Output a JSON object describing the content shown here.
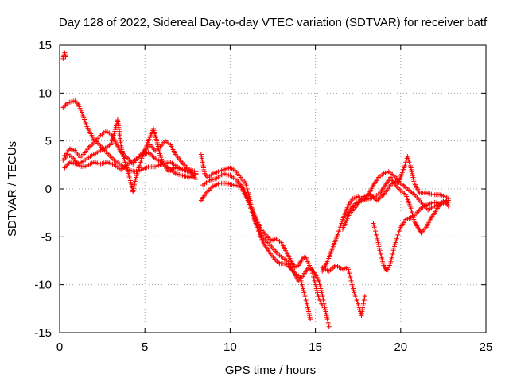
{
  "chart_data": {
    "type": "scatter",
    "title": "Day 128 of 2022, Sidereal Day-to-day VTEC variation (SDTVAR) for receiver batf",
    "xlabel": "GPS time / hours",
    "ylabel": "SDTVAR / TECUs",
    "xlim": [
      0,
      25
    ],
    "ylim": [
      -15,
      15
    ],
    "xticks": [
      0,
      5,
      10,
      15,
      20,
      25
    ],
    "yticks": [
      -15,
      -10,
      -5,
      0,
      5,
      10,
      15
    ],
    "grid": true,
    "marker": "plus",
    "color": "#ff0000",
    "traces": [
      {
        "points": [
          [
            0.2,
            13.6
          ],
          [
            0.25,
            14.0
          ],
          [
            0.3,
            14.2
          ],
          [
            0.35,
            13.8
          ]
        ]
      },
      {
        "points": [
          [
            0.2,
            8.5
          ],
          [
            0.5,
            9.0
          ],
          [
            0.9,
            9.2
          ],
          [
            1.1,
            8.8
          ],
          [
            1.3,
            8.0
          ],
          [
            1.6,
            6.5
          ],
          [
            2.0,
            5.2
          ],
          [
            2.4,
            4.5
          ],
          [
            2.8,
            3.7
          ],
          [
            3.2,
            3.0
          ],
          [
            3.6,
            2.5
          ],
          [
            4.0,
            2.0
          ],
          [
            4.4,
            1.8
          ],
          [
            4.8,
            2.0
          ],
          [
            5.2,
            2.3
          ],
          [
            5.6,
            2.3
          ],
          [
            6.0,
            2.6
          ],
          [
            6.5,
            2.8
          ],
          [
            7.0,
            2.2
          ],
          [
            7.5,
            1.8
          ],
          [
            8.0,
            1.6
          ]
        ]
      },
      {
        "points": [
          [
            0.3,
            2.2
          ],
          [
            0.6,
            2.8
          ],
          [
            1.0,
            2.6
          ],
          [
            1.4,
            2.9
          ],
          [
            1.8,
            3.4
          ],
          [
            2.2,
            3.8
          ],
          [
            2.6,
            4.2
          ],
          [
            3.0,
            4.6
          ],
          [
            3.2,
            5.8
          ],
          [
            3.4,
            7.2
          ],
          [
            3.5,
            6.0
          ],
          [
            3.6,
            4.5
          ],
          [
            3.8,
            3.0
          ],
          [
            4.0,
            1.8
          ],
          [
            4.2,
            0.5
          ],
          [
            4.3,
            -0.3
          ],
          [
            4.4,
            0.6
          ],
          [
            4.6,
            2.0
          ],
          [
            4.9,
            3.6
          ],
          [
            5.2,
            5.0
          ],
          [
            5.5,
            6.3
          ],
          [
            5.7,
            5.0
          ],
          [
            5.9,
            3.5
          ],
          [
            6.1,
            2.5
          ],
          [
            6.4,
            1.8
          ],
          [
            6.8,
            2.2
          ],
          [
            7.2,
            2.0
          ],
          [
            7.6,
            2.0
          ],
          [
            8.0,
            1.8
          ]
        ]
      },
      {
        "points": [
          [
            0.3,
            3.5
          ],
          [
            0.6,
            4.2
          ],
          [
            0.9,
            4.0
          ],
          [
            1.2,
            3.3
          ],
          [
            1.4,
            3.6
          ],
          [
            1.7,
            4.3
          ],
          [
            2.0,
            4.8
          ],
          [
            2.4,
            5.6
          ],
          [
            2.7,
            6.0
          ],
          [
            3.0,
            5.8
          ],
          [
            3.3,
            4.8
          ],
          [
            3.6,
            3.8
          ],
          [
            4.0,
            3.2
          ],
          [
            4.3,
            2.6
          ],
          [
            4.6,
            3.3
          ],
          [
            5.0,
            4.0
          ],
          [
            5.3,
            4.6
          ],
          [
            5.6,
            4.0
          ],
          [
            5.9,
            4.4
          ],
          [
            6.2,
            5.0
          ],
          [
            6.5,
            4.6
          ],
          [
            6.8,
            3.6
          ],
          [
            7.2,
            2.7
          ],
          [
            7.6,
            2.0
          ],
          [
            8.0,
            1.0
          ]
        ]
      },
      {
        "points": [
          [
            0.2,
            3.0
          ],
          [
            0.5,
            3.6
          ],
          [
            0.8,
            3.2
          ],
          [
            1.2,
            2.3
          ],
          [
            1.6,
            2.4
          ],
          [
            2.0,
            2.8
          ],
          [
            2.4,
            2.6
          ],
          [
            2.8,
            2.8
          ],
          [
            3.2,
            2.5
          ],
          [
            3.6,
            2.0
          ],
          [
            4.0,
            2.6
          ],
          [
            4.4,
            3.0
          ],
          [
            4.8,
            3.5
          ],
          [
            5.2,
            3.8
          ],
          [
            5.6,
            3.2
          ],
          [
            6.0,
            2.7
          ],
          [
            6.4,
            2.2
          ],
          [
            6.8,
            1.6
          ],
          [
            7.2,
            1.4
          ],
          [
            7.6,
            1.2
          ],
          [
            8.0,
            1.5
          ]
        ]
      },
      {
        "points": [
          [
            8.3,
            3.6
          ],
          [
            8.4,
            2.6
          ],
          [
            8.5,
            1.6
          ],
          [
            8.7,
            1.2
          ],
          [
            9.0,
            1.6
          ],
          [
            9.3,
            1.8
          ],
          [
            9.6,
            2.0
          ],
          [
            10.0,
            2.2
          ],
          [
            10.3,
            1.9
          ],
          [
            10.6,
            1.2
          ],
          [
            10.9,
            0.6
          ],
          [
            11.1,
            -0.6
          ],
          [
            11.3,
            -2.2
          ],
          [
            11.5,
            -3.6
          ],
          [
            11.7,
            -4.6
          ],
          [
            12.0,
            -5.8
          ],
          [
            12.3,
            -6.6
          ],
          [
            12.6,
            -7.3
          ],
          [
            12.9,
            -7.8
          ],
          [
            13.2,
            -7.8
          ],
          [
            13.5,
            -8.2
          ],
          [
            13.8,
            -8.8
          ],
          [
            14.1,
            -9.2
          ],
          [
            14.3,
            -10.6
          ],
          [
            14.5,
            -12.0
          ],
          [
            14.7,
            -13.6
          ]
        ]
      },
      {
        "points": [
          [
            8.3,
            -1.2
          ],
          [
            8.6,
            -0.4
          ],
          [
            9.0,
            0.3
          ],
          [
            9.4,
            0.6
          ],
          [
            9.8,
            0.6
          ],
          [
            10.2,
            0.4
          ],
          [
            10.6,
            0.3
          ],
          [
            11.0,
            -1.0
          ],
          [
            11.3,
            -2.6
          ],
          [
            11.6,
            -4.0
          ],
          [
            11.9,
            -5.0
          ],
          [
            12.2,
            -5.6
          ],
          [
            12.5,
            -6.2
          ],
          [
            12.8,
            -6.8
          ],
          [
            13.1,
            -7.2
          ],
          [
            13.4,
            -7.6
          ],
          [
            13.7,
            -8.6
          ],
          [
            14.0,
            -9.6
          ],
          [
            14.3,
            -9.0
          ],
          [
            14.6,
            -8.2
          ],
          [
            14.9,
            -8.6
          ],
          [
            15.2,
            -9.6
          ],
          [
            15.4,
            -11.0
          ],
          [
            15.6,
            -12.8
          ],
          [
            15.8,
            -14.4
          ]
        ]
      },
      {
        "points": [
          [
            8.4,
            0.4
          ],
          [
            8.8,
            0.9
          ],
          [
            9.2,
            1.1
          ],
          [
            9.6,
            1.6
          ],
          [
            10.0,
            1.4
          ],
          [
            10.4,
            0.9
          ],
          [
            10.8,
            0.0
          ],
          [
            11.2,
            -1.8
          ],
          [
            11.5,
            -3.0
          ],
          [
            11.8,
            -4.2
          ],
          [
            12.1,
            -4.8
          ],
          [
            12.4,
            -5.4
          ],
          [
            12.7,
            -5.2
          ],
          [
            13.0,
            -5.6
          ],
          [
            13.3,
            -6.6
          ],
          [
            13.6,
            -7.6
          ],
          [
            13.8,
            -8.2
          ],
          [
            14.0,
            -8.0
          ],
          [
            14.2,
            -7.4
          ],
          [
            14.4,
            -7.0
          ],
          [
            14.6,
            -7.8
          ],
          [
            14.8,
            -8.6
          ],
          [
            15.0,
            -10.0
          ],
          [
            15.2,
            -11.4
          ],
          [
            15.4,
            -12.2
          ]
        ]
      },
      {
        "points": [
          [
            15.4,
            -8.2
          ],
          [
            15.8,
            -8.6
          ],
          [
            16.2,
            -8.0
          ],
          [
            16.6,
            -8.4
          ],
          [
            16.9,
            -8.2
          ],
          [
            17.1,
            -9.6
          ],
          [
            17.3,
            -11.0
          ],
          [
            17.5,
            -12.0
          ],
          [
            17.6,
            -12.6
          ],
          [
            17.7,
            -13.2
          ],
          [
            17.8,
            -12.2
          ],
          [
            17.9,
            -11.2
          ]
        ]
      },
      {
        "points": [
          [
            15.4,
            -8.6
          ],
          [
            15.7,
            -7.6
          ],
          [
            16.0,
            -6.2
          ],
          [
            16.3,
            -4.8
          ],
          [
            16.6,
            -3.2
          ],
          [
            16.9,
            -1.8
          ],
          [
            17.2,
            -1.0
          ],
          [
            17.5,
            -0.8
          ],
          [
            17.8,
            -1.2
          ],
          [
            18.1,
            -0.6
          ],
          [
            18.4,
            0.4
          ],
          [
            18.7,
            1.2
          ],
          [
            19.0,
            1.6
          ],
          [
            19.3,
            1.8
          ],
          [
            19.6,
            1.4
          ],
          [
            19.9,
            0.8
          ],
          [
            20.2,
            2.2
          ],
          [
            20.4,
            3.4
          ],
          [
            20.6,
            2.2
          ],
          [
            20.8,
            0.6
          ],
          [
            21.1,
            -0.4
          ],
          [
            21.5,
            -0.4
          ],
          [
            21.9,
            -0.6
          ],
          [
            22.3,
            -0.6
          ],
          [
            22.6,
            -0.8
          ],
          [
            22.8,
            -1.0
          ]
        ]
      },
      {
        "points": [
          [
            16.8,
            -2.8
          ],
          [
            17.1,
            -2.0
          ],
          [
            17.4,
            -1.4
          ],
          [
            17.8,
            -1.2
          ],
          [
            18.2,
            -1.0
          ],
          [
            18.5,
            -0.8
          ],
          [
            18.8,
            -0.4
          ],
          [
            19.1,
            0.4
          ],
          [
            19.4,
            1.2
          ],
          [
            19.7,
            0.4
          ],
          [
            20.0,
            -0.2
          ],
          [
            20.3,
            -0.6
          ],
          [
            20.6,
            -2.0
          ],
          [
            20.8,
            -3.4
          ],
          [
            21.0,
            -4.0
          ],
          [
            21.2,
            -4.6
          ],
          [
            21.5,
            -4.0
          ],
          [
            21.8,
            -3.0
          ],
          [
            22.1,
            -2.2
          ],
          [
            22.4,
            -1.4
          ],
          [
            22.6,
            -1.2
          ],
          [
            22.8,
            -1.8
          ]
        ]
      },
      {
        "points": [
          [
            18.4,
            -3.6
          ],
          [
            18.6,
            -5.0
          ],
          [
            18.8,
            -6.6
          ],
          [
            19.0,
            -8.0
          ],
          [
            19.2,
            -8.6
          ],
          [
            19.4,
            -7.8
          ],
          [
            19.6,
            -6.2
          ],
          [
            19.8,
            -5.0
          ],
          [
            20.0,
            -4.0
          ],
          [
            20.3,
            -3.2
          ],
          [
            20.6,
            -3.0
          ],
          [
            20.9,
            -2.6
          ],
          [
            21.2,
            -2.0
          ],
          [
            21.6,
            -1.6
          ],
          [
            22.0,
            -1.4
          ],
          [
            22.4,
            -1.6
          ],
          [
            22.8,
            -1.4
          ]
        ]
      },
      {
        "points": [
          [
            16.6,
            -4.2
          ],
          [
            17.0,
            -2.6
          ],
          [
            17.4,
            -1.8
          ],
          [
            17.8,
            -0.8
          ],
          [
            18.2,
            -0.6
          ],
          [
            18.6,
            -1.2
          ],
          [
            19.0,
            -0.6
          ],
          [
            19.4,
            0.4
          ],
          [
            19.7,
            0.8
          ],
          [
            20.0,
            0.6
          ],
          [
            20.4,
            0.0
          ],
          [
            20.8,
            -0.6
          ],
          [
            21.2,
            -1.4
          ],
          [
            21.6,
            -2.2
          ],
          [
            22.0,
            -1.8
          ],
          [
            22.4,
            -1.4
          ],
          [
            22.8,
            -1.2
          ]
        ]
      }
    ]
  }
}
